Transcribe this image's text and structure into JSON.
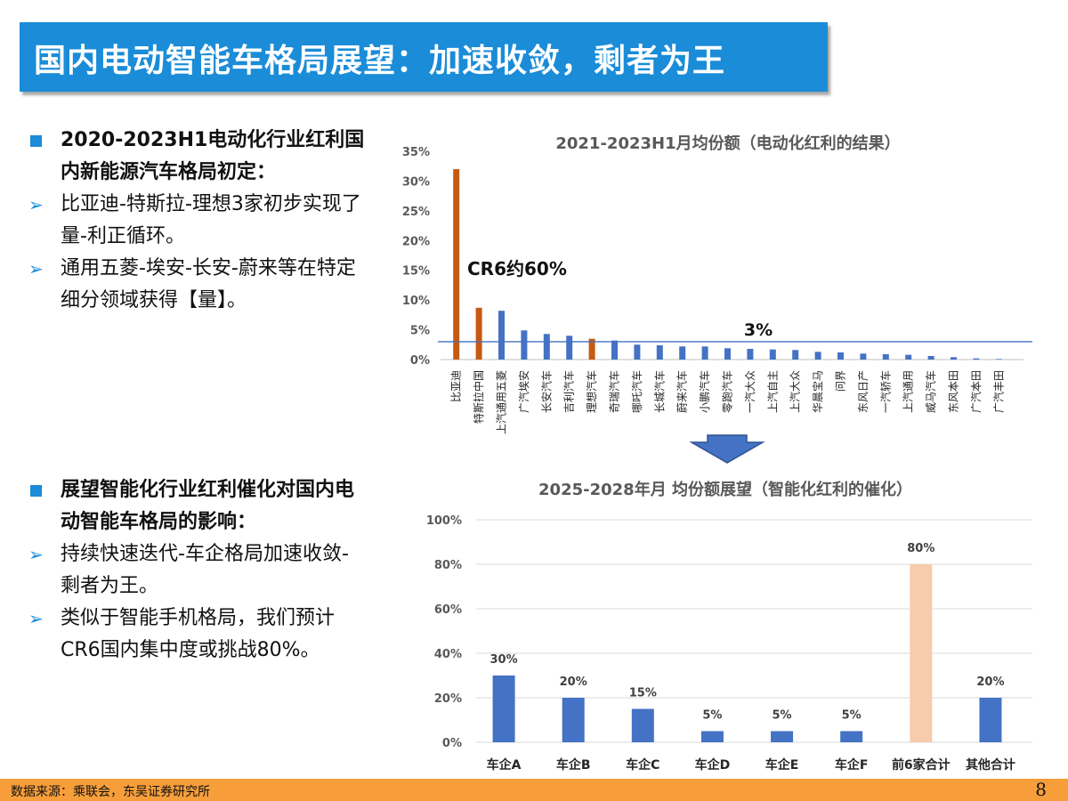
{
  "title": "国内电动智能车格局展望：加速收敛，剩者为王",
  "section1": {
    "heading": "2020-2023H1电动化行业红利国内新能源汽车格局初定：",
    "bullets": [
      "比亚迪-特斯拉-理想3家初步实现了量-利正循环。",
      "通用五菱-埃安-长安-蔚来等在特定细分领域获得【量】。"
    ]
  },
  "section2": {
    "heading": "展望智能化行业红利催化对国内电动智能车格局的影响：",
    "bullets": [
      "持续快速迭代-车企格局加速收敛-剩者为王。",
      "类似于智能手机格局，我们预计CR6国内集中度或挑战80%。"
    ]
  },
  "chart_data": [
    {
      "type": "bar",
      "title": "2021-2023H1月均份额（电动化红利的结果）",
      "categories": [
        "比亚迪",
        "特斯拉中国",
        "上汽通用五菱",
        "广汽埃安",
        "长安汽车",
        "吉利汽车",
        "理想汽车",
        "奇瑞汽车",
        "哪吒汽车",
        "长城汽车",
        "蔚来汽车",
        "小鹏汽车",
        "零跑汽车",
        "一汽大众",
        "上汽自主",
        "上汽大众",
        "华晨宝马",
        "问界",
        "东风日产",
        "一汽轿车",
        "上汽通用",
        "威马汽车",
        "东风本田",
        "广汽本田",
        "广汽丰田"
      ],
      "values": [
        32,
        8.7,
        8.2,
        4.9,
        4.3,
        4.0,
        3.5,
        3.2,
        2.5,
        2.4,
        2.2,
        2.2,
        1.9,
        1.8,
        1.7,
        1.6,
        1.3,
        1.2,
        1.0,
        0.9,
        0.8,
        0.6,
        0.4,
        0.2,
        0.1
      ],
      "highlighted": [
        "比亚迪",
        "特斯拉中国",
        "理想汽车"
      ],
      "colors": {
        "highlight": "#c55a11",
        "normal": "#4472c4",
        "ref_line": "#4472c4"
      },
      "ylim": [
        0,
        35
      ],
      "yticks": [
        "0%",
        "5%",
        "10%",
        "15%",
        "20%",
        "25%",
        "30%",
        "35%"
      ],
      "reference_line": {
        "value": 3,
        "label": "3%"
      },
      "annotation": "CR6约60%",
      "grid": false
    },
    {
      "type": "bar",
      "title": "2025-2028年月 均份额展望（智能化红利的催化）",
      "categories": [
        "车企A",
        "车企B",
        "车企C",
        "车企D",
        "车企E",
        "车企F",
        "前6家合计",
        "其他合计"
      ],
      "values": [
        30,
        20,
        15,
        5,
        5,
        5,
        80,
        20
      ],
      "data_labels": [
        "30%",
        "20%",
        "15%",
        "5%",
        "5%",
        "5%",
        "80%",
        "20%"
      ],
      "colors": {
        "normal": "#4472c4",
        "total": "#f8cbad"
      },
      "ylim": [
        0,
        100
      ],
      "yticks": [
        "0%",
        "20%",
        "40%",
        "60%",
        "80%",
        "100%"
      ],
      "grid": true
    }
  ],
  "footer": {
    "source": "数据来源：乘联会，东吴证券研究所",
    "page": "8"
  }
}
